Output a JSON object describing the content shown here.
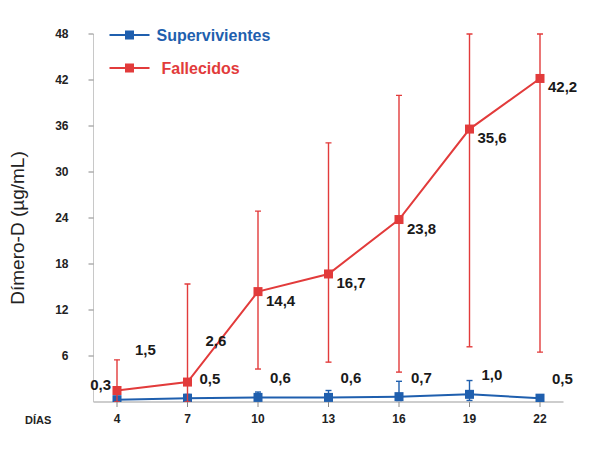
{
  "chart_data": {
    "type": "line",
    "x_label": "DÍAS",
    "y_label": "Dímero-D (µg/mL)",
    "x": [
      4,
      7,
      10,
      13,
      16,
      19,
      22
    ],
    "xlim": [
      3,
      23
    ],
    "xticks": [
      4,
      7,
      10,
      13,
      16,
      19,
      22
    ],
    "ylim": [
      0,
      48
    ],
    "yticks": [
      6,
      12,
      18,
      24,
      30,
      36,
      42,
      48
    ],
    "grid": false,
    "legend": "top-left",
    "data_labels": true,
    "marker": "square",
    "series": [
      {
        "name": "Supervivientes",
        "color": "#1f5fae",
        "values": [
          0.3,
          0.5,
          0.6,
          0.6,
          0.7,
          1.0,
          0.5
        ],
        "value_labels": [
          "0,3",
          "0,5",
          "0,6",
          "0,6",
          "0,7",
          "1,0",
          "0,5"
        ],
        "error_minus": [
          0.3,
          0.3,
          0.4,
          0.4,
          0.5,
          0.8,
          0.3
        ],
        "error_plus": [
          0.4,
          0.5,
          0.7,
          0.9,
          2.0,
          1.8,
          0.4
        ]
      },
      {
        "name": "Fallecidos",
        "color": "#e23b3b",
        "values": [
          1.5,
          2.6,
          14.4,
          16.7,
          23.8,
          35.6,
          42.2
        ],
        "value_labels": [
          "1,5",
          "2,6",
          "14,4",
          "16,7",
          "23,8",
          "35,6",
          "42,2"
        ],
        "error_minus": [
          1.5,
          2.6,
          10.1,
          11.5,
          19.9,
          28.4,
          35.7
        ],
        "error_plus": [
          4.0,
          12.8,
          10.5,
          17.1,
          16.2,
          12.4,
          5.8
        ]
      }
    ]
  }
}
